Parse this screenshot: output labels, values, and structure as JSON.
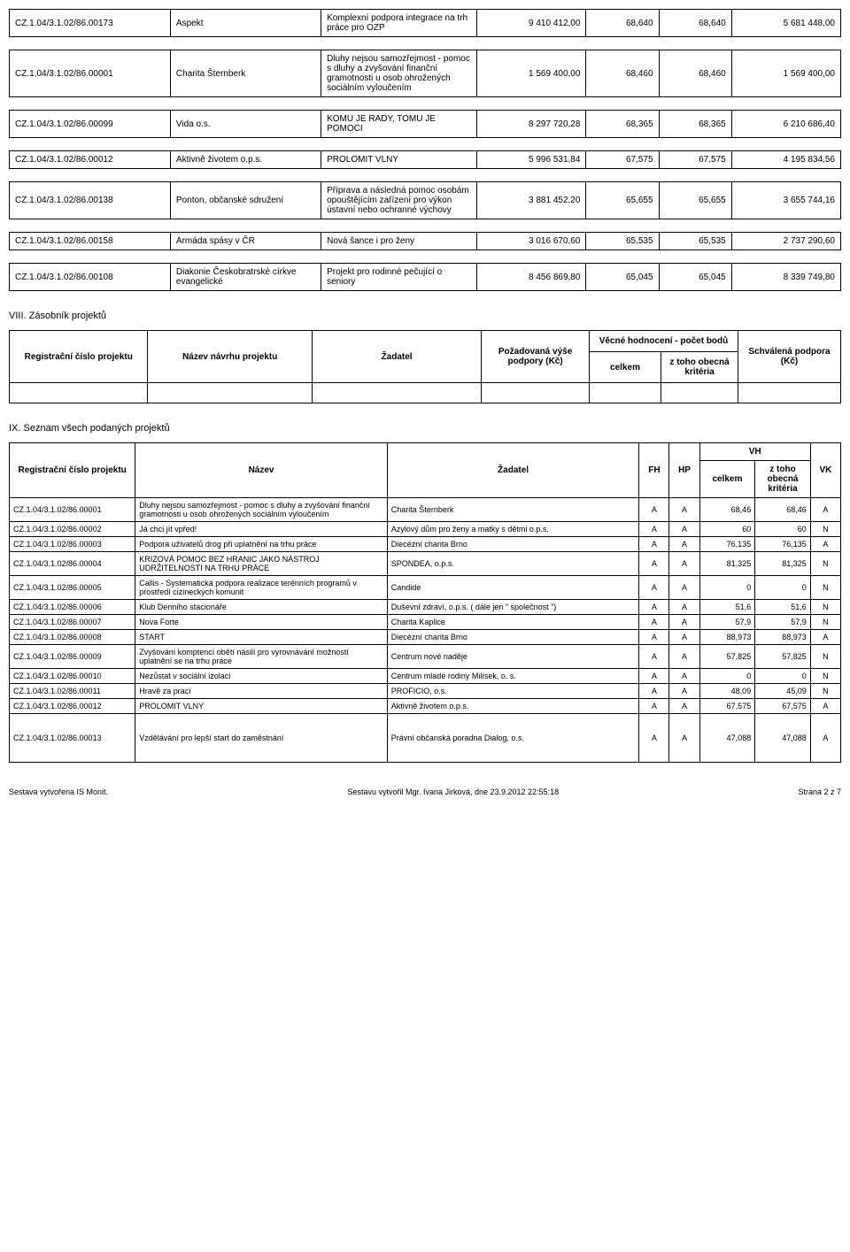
{
  "table1_rows": [
    {
      "id": "CZ.1.04/3.1.02/86.00173",
      "subject": "Aspekt",
      "desc": "Komplexní podpora integrace na trh práce pro OZP",
      "amount": "9 410 412,00",
      "score1": "68,640",
      "score2": "68,640",
      "amount2": "5 681 448,00"
    },
    {
      "id": "CZ.1.04/3.1.02/86.00001",
      "subject": "Charita Šternberk",
      "desc": "Dluhy nejsou samozřejmost - pomoc s dluhy a zvyšování finanční gramotnosti u osob ohrožených sociálním vyloučením",
      "amount": "1 569 400,00",
      "score1": "68,460",
      "score2": "68,460",
      "amount2": "1 569 400,00"
    },
    {
      "id": "CZ.1.04/3.1.02/86.00099",
      "subject": "Vida o.s.",
      "desc": "KOMU JE RADY, TOMU JE POMOCI",
      "amount": "8 297 720,28",
      "score1": "68,365",
      "score2": "68,365",
      "amount2": "6 210 686,40"
    },
    {
      "id": "CZ.1.04/3.1.02/86.00012",
      "subject": "Aktivně životem o.p.s.",
      "desc": "PROLOMIT VLNY",
      "amount": "5 996 531,84",
      "score1": "67,575",
      "score2": "67,575",
      "amount2": "4 195 834,56"
    },
    {
      "id": "CZ.1.04/3.1.02/86.00138",
      "subject": "Ponton, občanské sdružení",
      "desc": "Příprava a následná pomoc osobám opouštějícím zařízení pro výkon ústavní nebo ochranné výchovy",
      "amount": "3 881 452,20",
      "score1": "65,655",
      "score2": "65,655",
      "amount2": "3 655 744,16"
    },
    {
      "id": "CZ.1.04/3.1.02/86.00158",
      "subject": "Armáda spásy v ČR",
      "desc": "Nová šance i pro ženy",
      "amount": "3 016 670,60",
      "score1": "65,535",
      "score2": "65,535",
      "amount2": "2 737 290,60"
    },
    {
      "id": "CZ.1.04/3.1.02/86.00108",
      "subject": "Diakonie Českobratrské církve evangelické",
      "desc": "Projekt pro rodinné pečující o seniory",
      "amount": "8 456 869,80",
      "score1": "65,045",
      "score2": "65,045",
      "amount2": "8 339 749,80"
    }
  ],
  "section8_title": "VIII. Zásobník projektů",
  "table2_headers": {
    "reg": "Registrační číslo projektu",
    "nazev": "Název návrhu projektu",
    "zadatel": "Žadatel",
    "pozad": "Požadovaná výše podpory (Kč)",
    "vecne": "Věcné hodnocení - počet bodů",
    "celkem": "celkem",
    "ztoho": "z toho obecná kritéria",
    "schval": "Schválená podpora (Kč)"
  },
  "section9_title": "IX. Seznam všech podaných projektů",
  "table3_headers": {
    "reg": "Registrační číslo projektu",
    "nazev": "Název",
    "zadatel": "Žadatel",
    "fh": "FH",
    "hp": "HP",
    "vh": "VH",
    "celkem": "celkem",
    "ztoho": "z toho obecná kritéria",
    "vk": "VK"
  },
  "table3_rows": [
    {
      "id": "CZ.1.04/3.1.02/86.00001",
      "name": "Dluhy nejsou samozřejmost - pomoc s dluhy a zvyšování finanční gramotnosti u osob ohrožených sociálním vyloučením",
      "zadatel": "Charita Šternberk",
      "fh": "A",
      "hp": "A",
      "celkem": "68,46",
      "ztoho": "68,46",
      "vk": "A",
      "tall": false
    },
    {
      "id": "CZ.1.04/3.1.02/86.00002",
      "name": "Já chci jít vpřed!",
      "zadatel": "Azylový dům pro ženy a matky s dětmi o.p.s.",
      "fh": "A",
      "hp": "A",
      "celkem": "60",
      "ztoho": "60",
      "vk": "N",
      "tall": false
    },
    {
      "id": "CZ.1.04/3.1.02/86.00003",
      "name": "Podpora uživatelů drog při uplatnění na trhu práce",
      "zadatel": "Diecézní charita Brno",
      "fh": "A",
      "hp": "A",
      "celkem": "76,135",
      "ztoho": "76,135",
      "vk": "A",
      "tall": false
    },
    {
      "id": "CZ.1.04/3.1.02/86.00004",
      "name": "KRIZOVÁ POMOC BEZ HRANIC JAKO NÁSTROJ UDRŽITELNOSTI NA TRHU PRÁCE",
      "zadatel": "SPONDEA, o.p.s.",
      "fh": "A",
      "hp": "A",
      "celkem": "81,325",
      "ztoho": "81,325",
      "vk": "N",
      "tall": false
    },
    {
      "id": "CZ.1.04/3.1.02/86.00005",
      "name": "Callis - Systematická podpora realizace terénních programů v prostředí cizineckých komunit",
      "zadatel": "Candide",
      "fh": "A",
      "hp": "A",
      "celkem": "0",
      "ztoho": "0",
      "vk": "N",
      "tall": false
    },
    {
      "id": "CZ.1.04/3.1.02/86.00006",
      "name": "Klub Denního stacionáře",
      "zadatel": "Duševní zdraví, o.p.s. ( dále jen \" společnost \")",
      "fh": "A",
      "hp": "A",
      "celkem": "51,6",
      "ztoho": "51,6",
      "vk": "N",
      "tall": false
    },
    {
      "id": "CZ.1.04/3.1.02/86.00007",
      "name": "Nova Forte",
      "zadatel": "Charita Kaplice",
      "fh": "A",
      "hp": "A",
      "celkem": "57,9",
      "ztoho": "57,9",
      "vk": "N",
      "tall": false
    },
    {
      "id": "CZ.1.04/3.1.02/86.00008",
      "name": "START",
      "zadatel": "Diecézní charita Brno",
      "fh": "A",
      "hp": "A",
      "celkem": "88,973",
      "ztoho": "88,973",
      "vk": "A",
      "tall": false
    },
    {
      "id": "CZ.1.04/3.1.02/86.00009",
      "name": "Zvyšování komptencí obětí násilí pro vyrovnávání možností uplatnění se na trhu práce",
      "zadatel": "Centrum nové naděje",
      "fh": "A",
      "hp": "A",
      "celkem": "57,825",
      "ztoho": "57,825",
      "vk": "N",
      "tall": false
    },
    {
      "id": "CZ.1.04/3.1.02/86.00010",
      "name": "Nezůstat v sociální izolaci",
      "zadatel": "Centrum mladé rodiny Milísek, o. s.",
      "fh": "A",
      "hp": "A",
      "celkem": "0",
      "ztoho": "0",
      "vk": "N",
      "tall": false
    },
    {
      "id": "CZ.1.04/3.1.02/86.00011",
      "name": "Hravě za prací",
      "zadatel": "PROFICIO, o.s.",
      "fh": "A",
      "hp": "A",
      "celkem": "48,09",
      "ztoho": "45,09",
      "vk": "N",
      "tall": false
    },
    {
      "id": "CZ.1.04/3.1.02/86.00012",
      "name": "PROLOMIT VLNY",
      "zadatel": "Aktivně životem o.p.s.",
      "fh": "A",
      "hp": "A",
      "celkem": "67,575",
      "ztoho": "67,575",
      "vk": "A",
      "tall": false
    },
    {
      "id": "CZ.1.04/3.1.02/86.00013",
      "name": "Vzdělávání pro lepší start do zaměstnání",
      "zadatel": "Právní občanská poradna Dialog, o.s.",
      "fh": "A",
      "hp": "A",
      "celkem": "47,088",
      "ztoho": "47,088",
      "vk": "A",
      "tall": true
    }
  ],
  "footer": {
    "left": "Sestava vytvořena IS Monit.",
    "center": "Sestavu vytvořil Mgr. Ivana Jirková, dne 23.9.2012 22:55:18",
    "right": "Strana 2 z 7"
  }
}
